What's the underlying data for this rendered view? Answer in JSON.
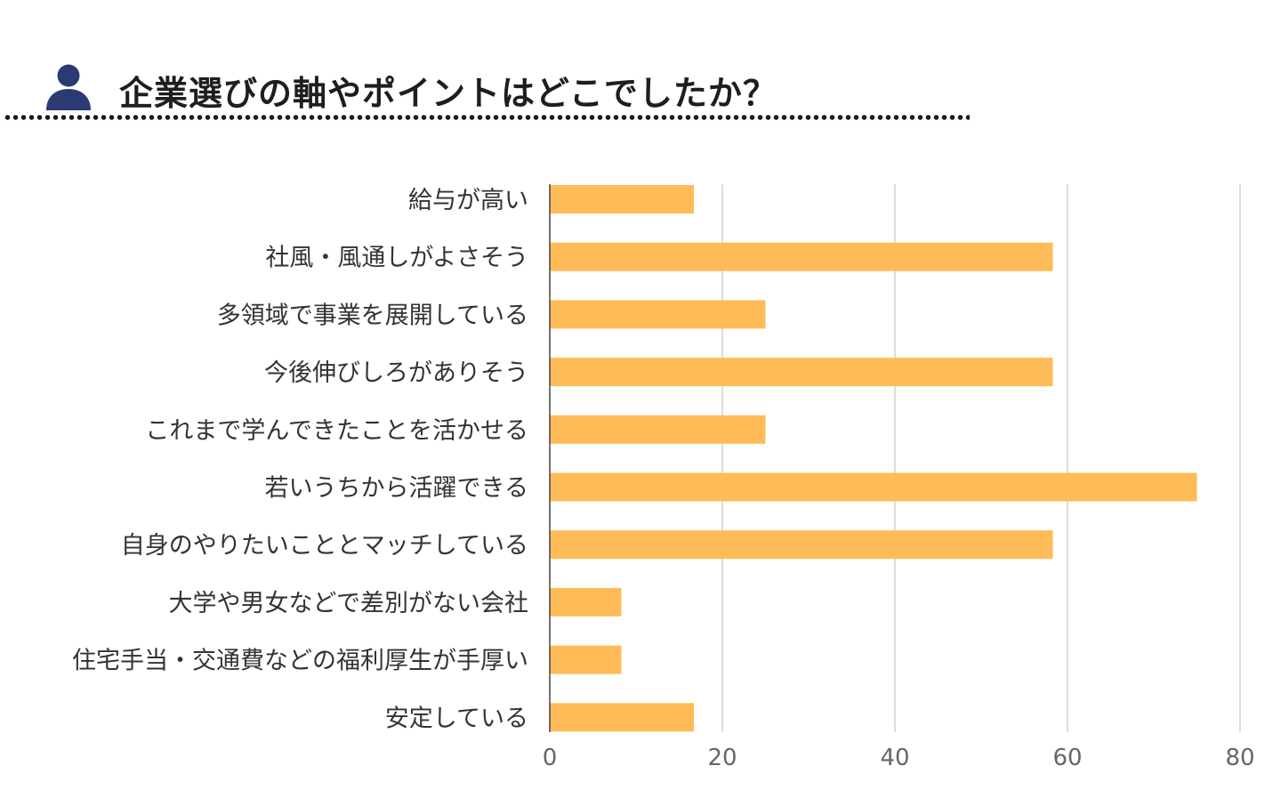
{
  "header": {
    "title": "企業選びの軸やポイントはどこでしたか？",
    "icon": "person-icon",
    "icon_color": "#2b3a73"
  },
  "chart_data": {
    "type": "bar",
    "orientation": "horizontal",
    "categories": [
      "給与が高い",
      "社風・風通しがよさそう",
      "多領域で事業を展開している",
      "今後伸びしろがありそう",
      "これまで学んできたことを活かせる",
      "若いうちから活躍できる",
      "自身のやりたいこととマッチしている",
      "大学や男女などで差別がない会社",
      "住宅手当・交通費などの福利厚生が手厚い",
      "安定している"
    ],
    "values": [
      16.7,
      58.3,
      25,
      58.3,
      25,
      75,
      58.3,
      8.3,
      8.3,
      16.7
    ],
    "xlim": [
      0,
      80
    ],
    "x_ticks": [
      "0",
      "20",
      "40",
      "60",
      "80"
    ],
    "grid": true,
    "bar_color": "#ffbb57",
    "grid_color": "#dddddd"
  }
}
